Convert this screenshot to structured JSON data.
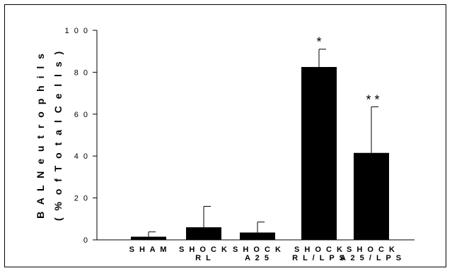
{
  "chart_data": {
    "type": "bar",
    "title": "",
    "ylabel_lines": [
      "B A L  N e u t r o p h i l s",
      "( %  o f  T o t a l  C e l l s )"
    ],
    "ylim": [
      0,
      100
    ],
    "yticks": [
      0,
      20,
      40,
      60,
      80,
      100
    ],
    "ytick_labels": [
      "0",
      "2 0",
      "4 0",
      "6 0",
      "8 0",
      "1 0 0"
    ],
    "categories": [
      [
        "S H A M"
      ],
      [
        "S H O C K",
        "R L"
      ],
      [
        "S H O C K",
        "A 2 5"
      ],
      [
        "S H O C K",
        "R L / L P S"
      ],
      [
        "S H O C K",
        "A 2 5 / L P S"
      ]
    ],
    "values": [
      1.5,
      6,
      3.5,
      82.5,
      41.5
    ],
    "errors": [
      2.3,
      10,
      5,
      8.5,
      22
    ],
    "annotations": [
      "",
      "",
      "",
      "*",
      "* *"
    ],
    "bar_color": "#000000",
    "grid": false
  }
}
